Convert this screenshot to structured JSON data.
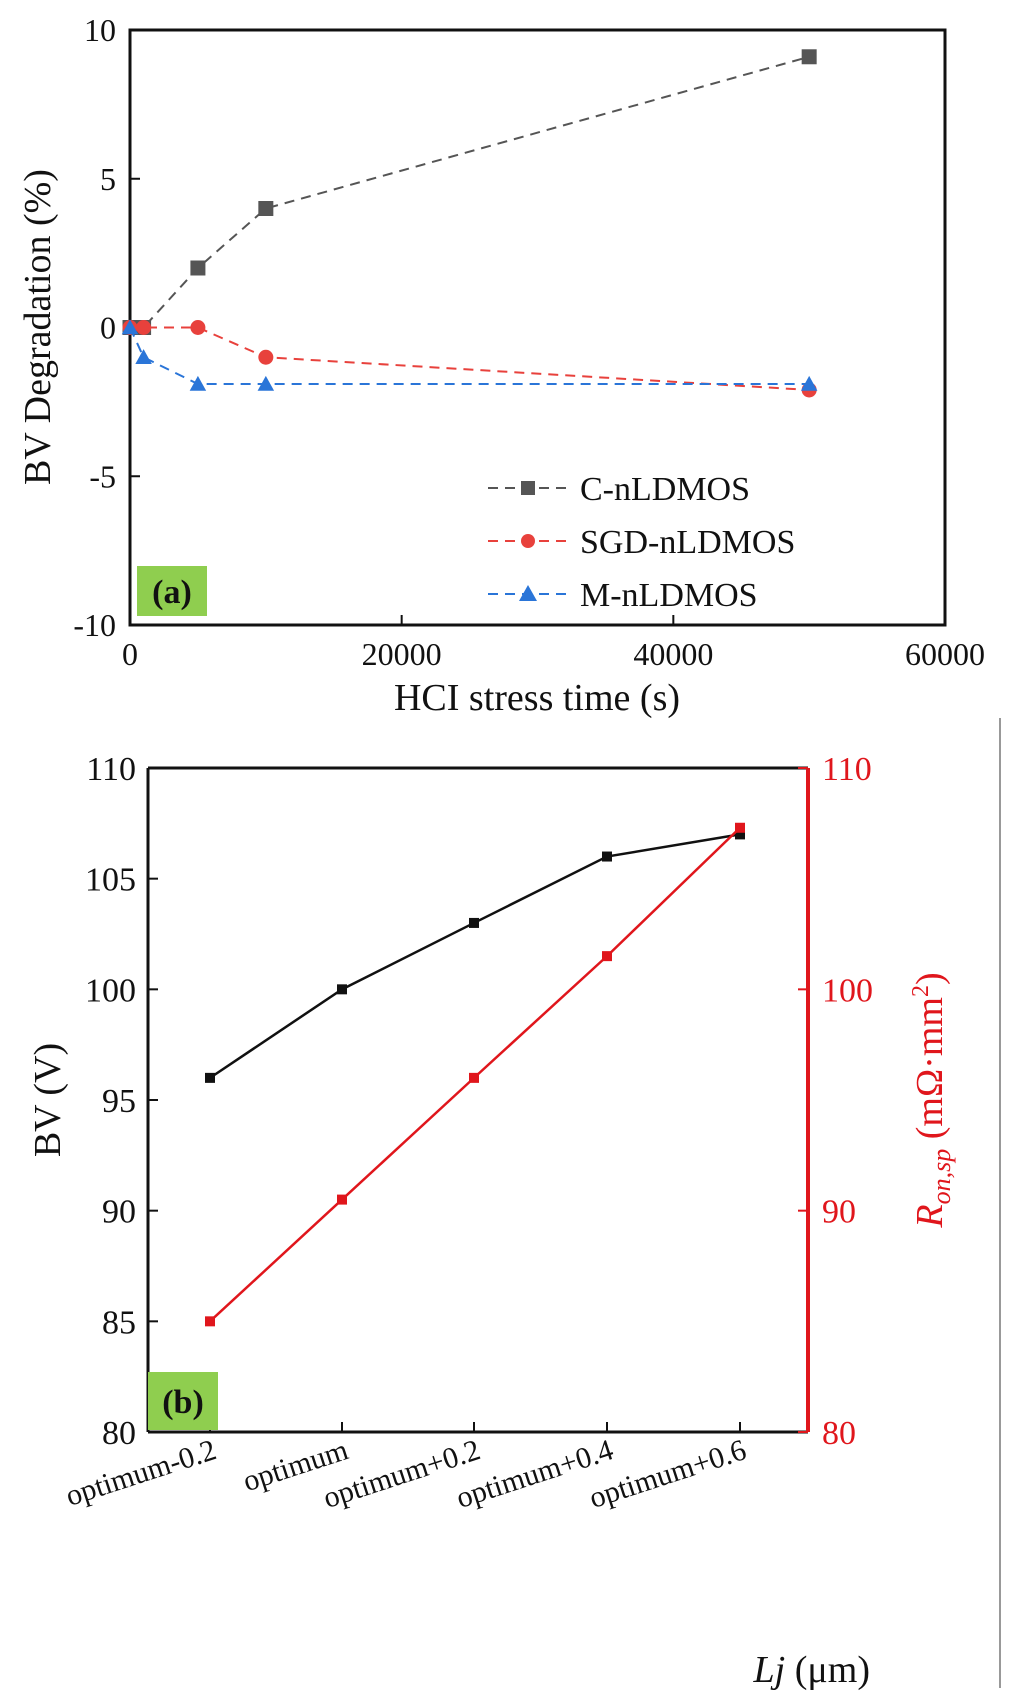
{
  "chart_data": [
    {
      "type": "line",
      "panel_label": "(a)",
      "xlabel": "HCI stress time (s)",
      "ylabel": "BV Degradation (%)",
      "xlim": [
        0,
        60000
      ],
      "ylim": [
        -10,
        10
      ],
      "xticks": [
        "0",
        "20000",
        "40000",
        "60000"
      ],
      "yticks": [
        "-10",
        "-5",
        "0",
        "5",
        "10"
      ],
      "grid": false,
      "legend_position": "bottom-right",
      "series": [
        {
          "name": "C-nLDMOS",
          "color": "#555555",
          "marker": "square",
          "line": "dashed",
          "x": [
            0,
            1000,
            5000,
            10000,
            50000
          ],
          "y": [
            0,
            0,
            2,
            4,
            9.1
          ]
        },
        {
          "name": "SGD-nLDMOS",
          "color": "#e8413c",
          "marker": "circle",
          "line": "dashed",
          "x": [
            0,
            1000,
            5000,
            10000,
            50000
          ],
          "y": [
            0,
            0,
            0,
            -1,
            -2.1
          ]
        },
        {
          "name": "M-nLDMOS",
          "color": "#2a75d8",
          "marker": "triangle",
          "line": "dashed",
          "x": [
            0,
            1000,
            5000,
            10000,
            50000
          ],
          "y": [
            0,
            -1,
            -1.9,
            -1.9,
            -1.9
          ]
        }
      ]
    },
    {
      "type": "line",
      "panel_label": "(b)",
      "xlabel_italic": "Lj",
      "xlabel_unit": " (μm)",
      "ylabel": "BV (V)",
      "y2label_main": "R",
      "y2label_sub": "on,sp",
      "y2label_unit": " (mΩ·mm",
      "y2label_sup": "2",
      "y2label_close": ")",
      "categories": [
        "optimum-0.2",
        "optimum",
        "optimum+0.2",
        "optimum+0.4",
        "optimum+0.6"
      ],
      "ylim": [
        80,
        110
      ],
      "y2lim": [
        80,
        110
      ],
      "yticks": [
        "80",
        "85",
        "90",
        "95",
        "100",
        "105",
        "110"
      ],
      "y2ticks": [
        "80",
        "90",
        "100",
        "110"
      ],
      "grid": false,
      "series": [
        {
          "axis": "left",
          "color": "#111111",
          "marker": "square",
          "line": "solid",
          "values": [
            96,
            100,
            103,
            106,
            107
          ]
        },
        {
          "axis": "right",
          "color": "#e0161c",
          "marker": "square",
          "line": "solid",
          "values": [
            85,
            90.5,
            96,
            101.5,
            107.3
          ]
        }
      ]
    }
  ],
  "colors": {
    "panel_tag_bg": "#8fce4f",
    "right_axis": "#e0161c"
  }
}
